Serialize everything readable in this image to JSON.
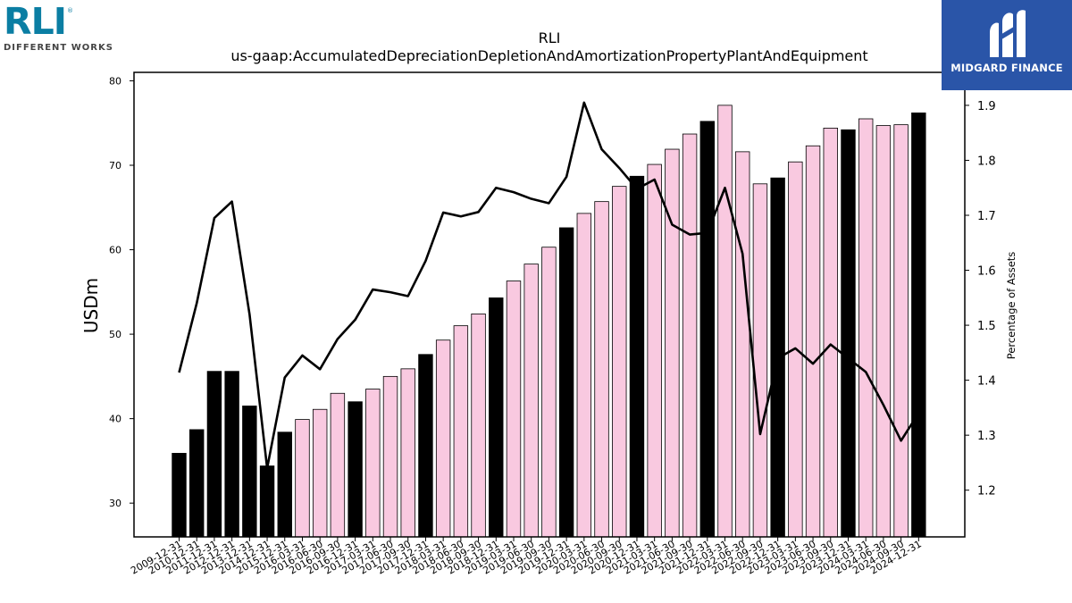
{
  "company_logo": {
    "mark": "RLI",
    "registered": "®",
    "tagline": "DIFFERENT WORKS"
  },
  "brand_logo": {
    "name": "MIDGARD FINANCE",
    "icon": "midgard-m-icon"
  },
  "chart_data": {
    "type": "bar",
    "title": "RLI",
    "subtitle": "us-gaap:AccumulatedDepreciationDepletionAndAmortizationPropertyPlantAndEquipment",
    "ylabel": "USDm",
    "y2label": "Percentage of Assets",
    "ylim": [
      26,
      81
    ],
    "y2lim": [
      1.115,
      1.96
    ],
    "yticks": [
      30,
      40,
      50,
      60,
      70,
      80
    ],
    "y2ticks": [
      1.2,
      1.3,
      1.4,
      1.5,
      1.6,
      1.7,
      1.8,
      1.9
    ],
    "categories": [
      "2009-12-31",
      "2010-12-31",
      "2011-12-31",
      "2012-12-31",
      "2013-12-31",
      "2014-12-31",
      "2015-12-31",
      "2016-03-31",
      "2016-06-30",
      "2016-09-30",
      "2016-12-31",
      "2017-03-31",
      "2017-06-30",
      "2017-09-30",
      "2017-12-31",
      "2018-03-31",
      "2018-06-30",
      "2018-09-30",
      "2018-12-31",
      "2019-03-31",
      "2019-06-30",
      "2019-09-30",
      "2019-12-31",
      "2020-03-31",
      "2020-06-30",
      "2020-09-30",
      "2020-12-31",
      "2021-03-31",
      "2021-06-30",
      "2021-09-30",
      "2021-12-31",
      "2022-03-31",
      "2022-06-30",
      "2022-09-30",
      "2022-12-31",
      "2023-03-31",
      "2023-06-30",
      "2023-09-30",
      "2023-12-31",
      "2024-03-31",
      "2024-06-30",
      "2024-09-30",
      "2024-12-31"
    ],
    "series": [
      {
        "kind": "bar",
        "axis": "left",
        "values": [
          35.9,
          38.7,
          45.6,
          45.6,
          41.5,
          34.4,
          38.4,
          39.9,
          41.1,
          43.0,
          42.0,
          43.5,
          45.0,
          45.9,
          47.6,
          49.3,
          51.0,
          52.4,
          54.3,
          56.3,
          58.3,
          60.3,
          62.6,
          64.3,
          65.7,
          67.5,
          68.7,
          70.1,
          71.9,
          73.7,
          75.2,
          77.1,
          71.6,
          67.8,
          68.5,
          70.4,
          72.3,
          74.4,
          74.2,
          75.5,
          74.7,
          74.8,
          76.2
        ],
        "annual_color": "#000000",
        "quarterly_color": "#f9c9e0",
        "annual": [
          true,
          true,
          true,
          true,
          true,
          true,
          true,
          false,
          false,
          false,
          true,
          false,
          false,
          false,
          true,
          false,
          false,
          false,
          true,
          false,
          false,
          false,
          true,
          false,
          false,
          false,
          true,
          false,
          false,
          false,
          true,
          false,
          false,
          false,
          true,
          false,
          false,
          false,
          true,
          false,
          false,
          false,
          true
        ]
      },
      {
        "kind": "line",
        "axis": "right",
        "color": "#000000",
        "values": [
          1.414,
          1.54,
          1.695,
          1.725,
          1.52,
          1.24,
          1.405,
          1.445,
          1.42,
          1.475,
          1.51,
          1.565,
          1.56,
          1.553,
          1.617,
          1.705,
          1.698,
          1.706,
          1.75,
          1.742,
          1.73,
          1.722,
          1.77,
          1.905,
          1.82,
          1.786,
          1.748,
          1.765,
          1.683,
          1.665,
          1.668,
          1.75,
          1.63,
          1.302,
          1.44,
          1.458,
          1.43,
          1.465,
          1.44,
          1.415,
          1.355,
          1.29,
          1.34
        ]
      }
    ]
  }
}
